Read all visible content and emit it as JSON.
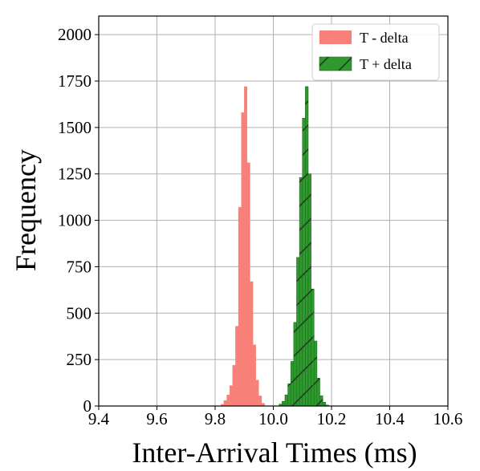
{
  "chart_data": {
    "type": "histogram",
    "title": "",
    "xlabel": "Inter-Arrival Times (ms)",
    "ylabel": "Frequency",
    "xlim": [
      9.4,
      10.6
    ],
    "ylim": [
      0,
      2100
    ],
    "xticks": [
      "9.4",
      "9.6",
      "9.8",
      "10.0",
      "10.2",
      "10.4",
      "10.6"
    ],
    "yticks": [
      "0",
      "250",
      "500",
      "750",
      "1000",
      "1250",
      "1500",
      "1750",
      "2000"
    ],
    "grid": true,
    "legend_position": "top-right",
    "bin_width": 0.01,
    "series": [
      {
        "name": "T - delta",
        "color": "#f88078",
        "hatch": "none",
        "bins": [
          {
            "x0": 9.82,
            "count": 10
          },
          {
            "x0": 9.83,
            "count": 30
          },
          {
            "x0": 9.84,
            "count": 60
          },
          {
            "x0": 9.85,
            "count": 110
          },
          {
            "x0": 9.86,
            "count": 220
          },
          {
            "x0": 9.87,
            "count": 430
          },
          {
            "x0": 9.88,
            "count": 1070
          },
          {
            "x0": 9.89,
            "count": 1580
          },
          {
            "x0": 9.9,
            "count": 1720
          },
          {
            "x0": 9.91,
            "count": 1310
          },
          {
            "x0": 9.92,
            "count": 670
          },
          {
            "x0": 9.93,
            "count": 330
          },
          {
            "x0": 9.94,
            "count": 140
          },
          {
            "x0": 9.95,
            "count": 55
          },
          {
            "x0": 9.96,
            "count": 15
          }
        ]
      },
      {
        "name": "T + delta",
        "color": "#2e9a2e",
        "hatch": "diagonal",
        "bins": [
          {
            "x0": 10.02,
            "count": 10
          },
          {
            "x0": 10.03,
            "count": 25
          },
          {
            "x0": 10.04,
            "count": 60
          },
          {
            "x0": 10.05,
            "count": 120
          },
          {
            "x0": 10.06,
            "count": 240
          },
          {
            "x0": 10.07,
            "count": 450
          },
          {
            "x0": 10.08,
            "count": 800
          },
          {
            "x0": 10.09,
            "count": 1230
          },
          {
            "x0": 10.1,
            "count": 1550
          },
          {
            "x0": 10.11,
            "count": 1720
          },
          {
            "x0": 10.12,
            "count": 1250
          },
          {
            "x0": 10.13,
            "count": 630
          },
          {
            "x0": 10.14,
            "count": 350
          },
          {
            "x0": 10.15,
            "count": 150
          },
          {
            "x0": 10.16,
            "count": 55
          },
          {
            "x0": 10.17,
            "count": 20
          },
          {
            "x0": 10.18,
            "count": 5
          }
        ]
      }
    ]
  }
}
